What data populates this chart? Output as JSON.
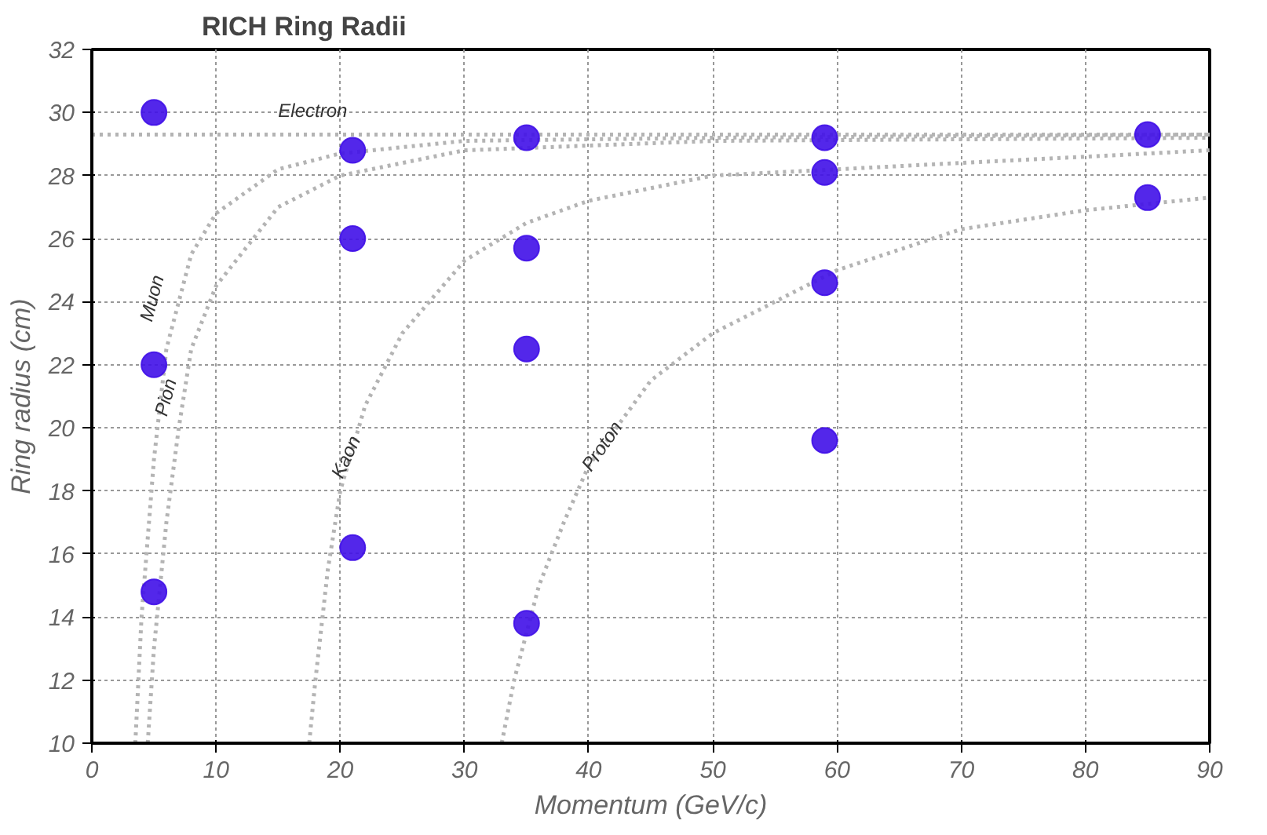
{
  "chart_data": {
    "type": "line",
    "title": "RICH Ring Radii",
    "xlabel": "Momentum (GeV/c)",
    "ylabel": "Ring radius (cm)",
    "xlim": [
      0,
      90
    ],
    "ylim": [
      10,
      32
    ],
    "xticks": [
      0,
      10,
      20,
      30,
      40,
      50,
      60,
      70,
      80,
      90
    ],
    "yticks": [
      10,
      12,
      14,
      16,
      18,
      20,
      22,
      24,
      26,
      28,
      30,
      32
    ],
    "grid": true,
    "marker": "none",
    "line_style": "dotted",
    "series": [
      {
        "name": "Electron",
        "color": "#b4b4b4",
        "x": [
          0,
          90
        ],
        "values": [
          29.3,
          29.3
        ]
      },
      {
        "name": "Muon",
        "color": "#b4b4b4",
        "x": [
          3.5,
          4,
          5,
          6,
          8,
          10,
          15,
          20,
          30,
          50,
          90
        ],
        "values": [
          10,
          14,
          19,
          22.5,
          25.5,
          26.8,
          28.2,
          28.7,
          29.1,
          29.2,
          29.3
        ]
      },
      {
        "name": "Pion",
        "color": "#b4b4b4",
        "x": [
          4.5,
          5,
          6,
          7,
          8,
          10,
          15,
          20,
          30,
          50,
          90
        ],
        "values": [
          10,
          13,
          17,
          20,
          22.5,
          24.5,
          27,
          28,
          28.8,
          29.1,
          29.2
        ]
      },
      {
        "name": "Kaon",
        "color": "#b4b4b4",
        "x": [
          17.5,
          18,
          19,
          20,
          22,
          25,
          30,
          35,
          40,
          50,
          60,
          80,
          90
        ],
        "values": [
          10,
          12,
          15.5,
          18,
          20.7,
          23,
          25.3,
          26.5,
          27.2,
          28,
          28.2,
          28.6,
          28.8
        ]
      },
      {
        "name": "Proton",
        "color": "#b4b4b4",
        "x": [
          33,
          34,
          36,
          38,
          40,
          45,
          50,
          55,
          60,
          70,
          80,
          90
        ],
        "values": [
          10,
          12,
          15,
          17,
          18.8,
          21.5,
          23,
          24,
          25,
          26.3,
          26.9,
          27.3
        ]
      },
      {
        "type": "scatter",
        "marker": "circle",
        "color": "#4010e8",
        "x": [
          5,
          5,
          5,
          21,
          21,
          21,
          35,
          35,
          35,
          35,
          59,
          59,
          59,
          59,
          85,
          85
        ],
        "values": [
          14.8,
          22,
          30,
          28.8,
          16.2,
          26,
          29.2,
          25.7,
          13.8,
          22.5,
          29.2,
          28.1,
          24.6,
          19.6,
          29.3,
          27.3
        ]
      }
    ]
  }
}
